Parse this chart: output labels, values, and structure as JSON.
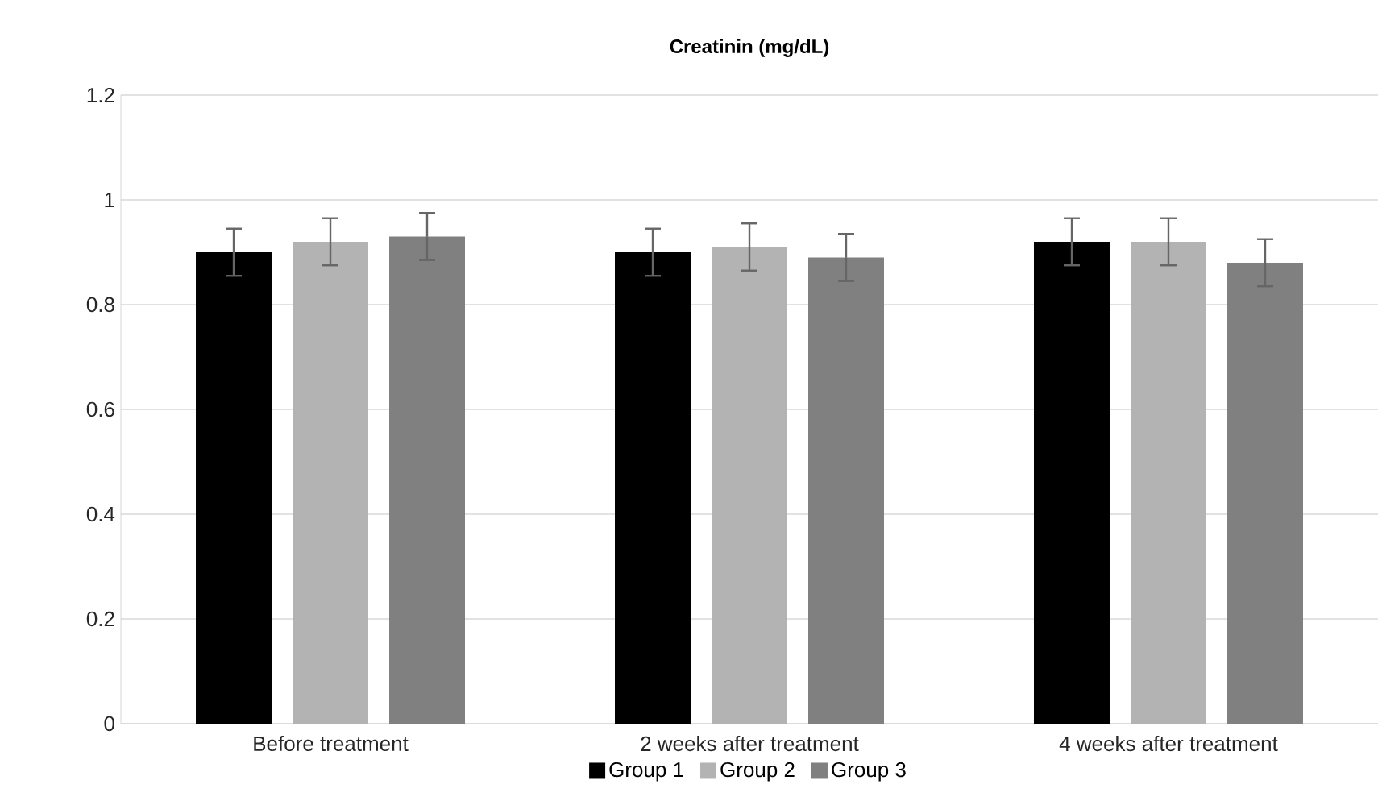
{
  "chart_data": {
    "type": "bar",
    "title": "Creatinin (mg/dL)",
    "categories": [
      "Before treatment",
      "2 weeks after treatment",
      "4 weeks after treatment"
    ],
    "series": [
      {
        "name": "Group 1",
        "color": "#000000",
        "values": [
          0.9,
          0.9,
          0.92
        ],
        "errors": [
          0.045,
          0.045,
          0.045
        ]
      },
      {
        "name": "Group 2",
        "color": "#b3b3b3",
        "values": [
          0.92,
          0.91,
          0.92
        ],
        "errors": [
          0.045,
          0.045,
          0.045
        ]
      },
      {
        "name": "Group 3",
        "color": "#808080",
        "values": [
          0.93,
          0.89,
          0.88
        ],
        "errors": [
          0.045,
          0.045,
          0.045
        ]
      }
    ],
    "ylim": [
      0,
      1.2
    ],
    "yticks": [
      0,
      0.2,
      0.4,
      0.6,
      0.8,
      1,
      1.2
    ],
    "grid": "y",
    "legend": "bottom"
  }
}
